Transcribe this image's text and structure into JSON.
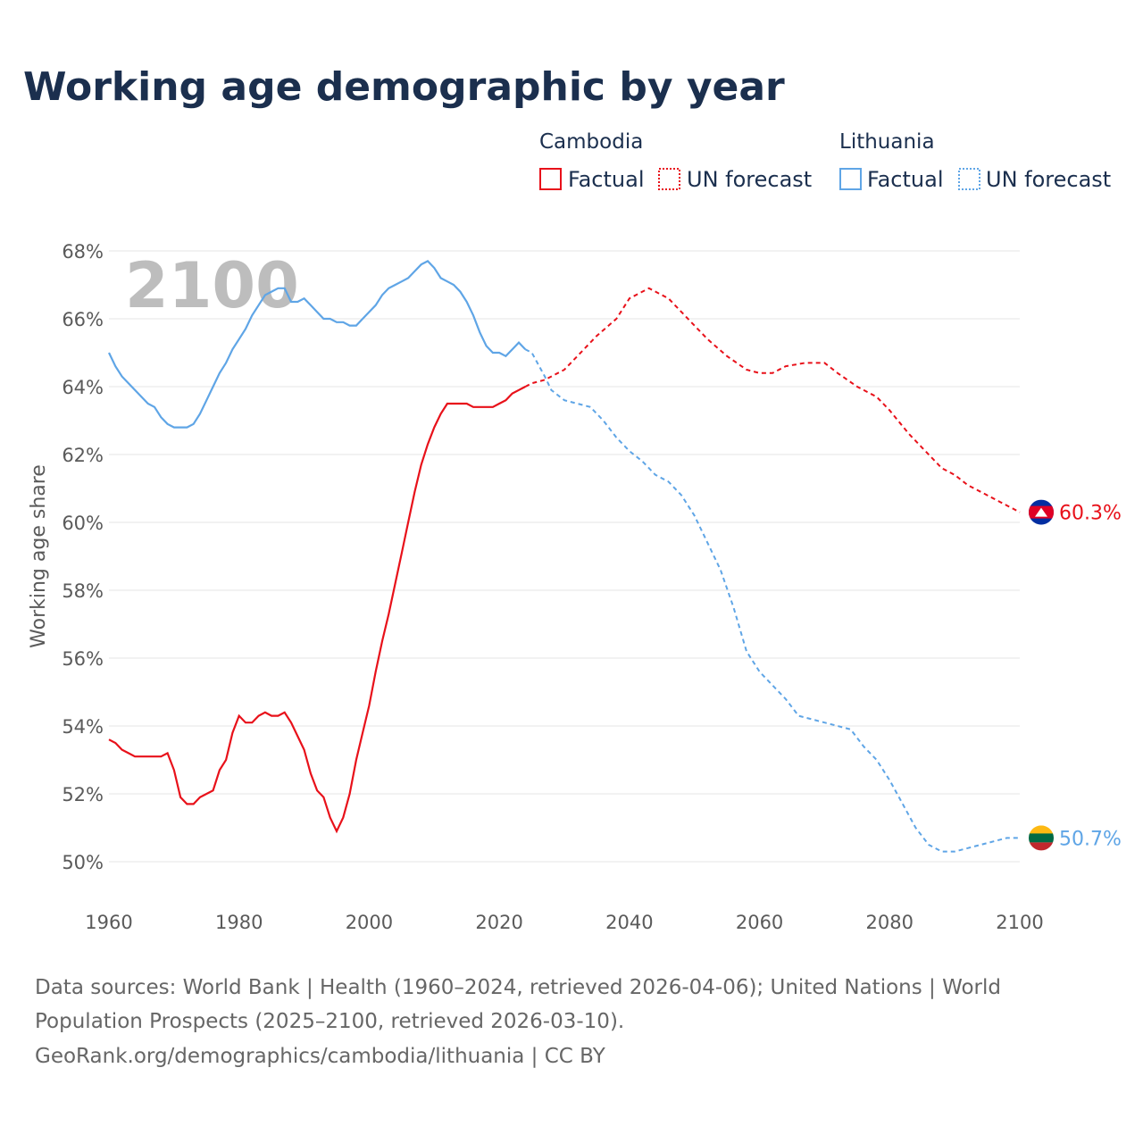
{
  "title": "Working age demographic by year",
  "legend": {
    "groups": [
      {
        "name": "Cambodia",
        "color": "#e8111a",
        "factual_label": "Factual",
        "forecast_label": "UN forecast"
      },
      {
        "name": "Lithuania",
        "color": "#5fa5e6",
        "factual_label": "Factual",
        "forecast_label": "UN forecast"
      }
    ]
  },
  "watermark_year": "2100",
  "source": {
    "line1": "Data sources: World Bank | Health (1960–2024, retrieved 2026-04-06); United Nations | World",
    "line2": "Population Prospects (2025–2100, retrieved 2026-03-10).",
    "line3": "GeoRank.org/demographics/cambodia/lithuania | CC BY"
  },
  "chart_data": {
    "type": "line",
    "title": "Working age demographic by year",
    "xlabel": "",
    "ylabel": "Working age share",
    "xlim": [
      1960,
      2100
    ],
    "ylim": [
      49.5,
      68
    ],
    "x_ticks": [
      1960,
      1980,
      2000,
      2020,
      2040,
      2060,
      2080,
      2100
    ],
    "x_tick_labels": [
      "1960",
      "1980",
      "2000",
      "2020",
      "2040",
      "2060",
      "2080",
      "2100"
    ],
    "y_ticks": [
      50,
      52,
      54,
      56,
      58,
      60,
      62,
      64,
      66,
      68
    ],
    "y_tick_labels": [
      "50%",
      "52%",
      "54%",
      "56%",
      "58%",
      "60%",
      "62%",
      "64%",
      "66%",
      "68%"
    ],
    "grid": true,
    "factual_end_year": 2024,
    "series": [
      {
        "name": "Cambodia",
        "color": "#e8111a",
        "end_label": "60.3%",
        "points": [
          [
            1960,
            53.6
          ],
          [
            1961,
            53.5
          ],
          [
            1962,
            53.3
          ],
          [
            1963,
            53.2
          ],
          [
            1964,
            53.1
          ],
          [
            1965,
            53.1
          ],
          [
            1966,
            53.1
          ],
          [
            1967,
            53.1
          ],
          [
            1968,
            53.1
          ],
          [
            1969,
            53.2
          ],
          [
            1970,
            52.7
          ],
          [
            1971,
            51.9
          ],
          [
            1972,
            51.7
          ],
          [
            1973,
            51.7
          ],
          [
            1974,
            51.9
          ],
          [
            1975,
            52.0
          ],
          [
            1976,
            52.1
          ],
          [
            1977,
            52.7
          ],
          [
            1978,
            53.0
          ],
          [
            1979,
            53.8
          ],
          [
            1980,
            54.3
          ],
          [
            1981,
            54.1
          ],
          [
            1982,
            54.1
          ],
          [
            1983,
            54.3
          ],
          [
            1984,
            54.4
          ],
          [
            1985,
            54.3
          ],
          [
            1986,
            54.3
          ],
          [
            1987,
            54.4
          ],
          [
            1988,
            54.1
          ],
          [
            1989,
            53.7
          ],
          [
            1990,
            53.3
          ],
          [
            1991,
            52.6
          ],
          [
            1992,
            52.1
          ],
          [
            1993,
            51.9
          ],
          [
            1994,
            51.3
          ],
          [
            1995,
            50.9
          ],
          [
            1996,
            51.3
          ],
          [
            1997,
            52.0
          ],
          [
            1998,
            53.0
          ],
          [
            1999,
            53.8
          ],
          [
            2000,
            54.6
          ],
          [
            2001,
            55.6
          ],
          [
            2002,
            56.5
          ],
          [
            2003,
            57.3
          ],
          [
            2004,
            58.2
          ],
          [
            2005,
            59.1
          ],
          [
            2006,
            60.0
          ],
          [
            2007,
            60.9
          ],
          [
            2008,
            61.7
          ],
          [
            2009,
            62.3
          ],
          [
            2010,
            62.8
          ],
          [
            2011,
            63.2
          ],
          [
            2012,
            63.5
          ],
          [
            2013,
            63.5
          ],
          [
            2014,
            63.5
          ],
          [
            2015,
            63.5
          ],
          [
            2016,
            63.4
          ],
          [
            2017,
            63.4
          ],
          [
            2018,
            63.4
          ],
          [
            2019,
            63.4
          ],
          [
            2020,
            63.5
          ],
          [
            2021,
            63.6
          ],
          [
            2022,
            63.8
          ],
          [
            2023,
            63.9
          ],
          [
            2024,
            64.0
          ],
          [
            2025,
            64.1
          ],
          [
            2027,
            64.2
          ],
          [
            2030,
            64.5
          ],
          [
            2032,
            64.9
          ],
          [
            2035,
            65.5
          ],
          [
            2038,
            66.0
          ],
          [
            2040,
            66.6
          ],
          [
            2043,
            66.9
          ],
          [
            2046,
            66.6
          ],
          [
            2050,
            65.8
          ],
          [
            2052,
            65.4
          ],
          [
            2055,
            64.9
          ],
          [
            2058,
            64.5
          ],
          [
            2060,
            64.4
          ],
          [
            2062,
            64.4
          ],
          [
            2064,
            64.6
          ],
          [
            2067,
            64.7
          ],
          [
            2070,
            64.7
          ],
          [
            2072,
            64.4
          ],
          [
            2075,
            64.0
          ],
          [
            2078,
            63.7
          ],
          [
            2080,
            63.3
          ],
          [
            2083,
            62.6
          ],
          [
            2085,
            62.2
          ],
          [
            2088,
            61.6
          ],
          [
            2090,
            61.4
          ],
          [
            2092,
            61.1
          ],
          [
            2095,
            60.8
          ],
          [
            2097,
            60.6
          ],
          [
            2099,
            60.4
          ],
          [
            2100,
            60.3
          ]
        ]
      },
      {
        "name": "Lithuania",
        "color": "#5fa5e6",
        "end_label": "50.7%",
        "points": [
          [
            1960,
            65.0
          ],
          [
            1961,
            64.6
          ],
          [
            1962,
            64.3
          ],
          [
            1963,
            64.1
          ],
          [
            1964,
            63.9
          ],
          [
            1965,
            63.7
          ],
          [
            1966,
            63.5
          ],
          [
            1967,
            63.4
          ],
          [
            1968,
            63.1
          ],
          [
            1969,
            62.9
          ],
          [
            1970,
            62.8
          ],
          [
            1971,
            62.8
          ],
          [
            1972,
            62.8
          ],
          [
            1973,
            62.9
          ],
          [
            1974,
            63.2
          ],
          [
            1975,
            63.6
          ],
          [
            1976,
            64.0
          ],
          [
            1977,
            64.4
          ],
          [
            1978,
            64.7
          ],
          [
            1979,
            65.1
          ],
          [
            1980,
            65.4
          ],
          [
            1981,
            65.7
          ],
          [
            1982,
            66.1
          ],
          [
            1983,
            66.4
          ],
          [
            1984,
            66.7
          ],
          [
            1985,
            66.8
          ],
          [
            1986,
            66.9
          ],
          [
            1987,
            66.9
          ],
          [
            1988,
            66.5
          ],
          [
            1989,
            66.5
          ],
          [
            1990,
            66.6
          ],
          [
            1991,
            66.4
          ],
          [
            1992,
            66.2
          ],
          [
            1993,
            66.0
          ],
          [
            1994,
            66.0
          ],
          [
            1995,
            65.9
          ],
          [
            1996,
            65.9
          ],
          [
            1997,
            65.8
          ],
          [
            1998,
            65.8
          ],
          [
            1999,
            66.0
          ],
          [
            2000,
            66.2
          ],
          [
            2001,
            66.4
          ],
          [
            2002,
            66.7
          ],
          [
            2003,
            66.9
          ],
          [
            2004,
            67.0
          ],
          [
            2005,
            67.1
          ],
          [
            2006,
            67.2
          ],
          [
            2007,
            67.4
          ],
          [
            2008,
            67.6
          ],
          [
            2009,
            67.7
          ],
          [
            2010,
            67.5
          ],
          [
            2011,
            67.2
          ],
          [
            2012,
            67.1
          ],
          [
            2013,
            67.0
          ],
          [
            2014,
            66.8
          ],
          [
            2015,
            66.5
          ],
          [
            2016,
            66.1
          ],
          [
            2017,
            65.6
          ],
          [
            2018,
            65.2
          ],
          [
            2019,
            65.0
          ],
          [
            2020,
            65.0
          ],
          [
            2021,
            64.9
          ],
          [
            2022,
            65.1
          ],
          [
            2023,
            65.3
          ],
          [
            2024,
            65.1
          ],
          [
            2025,
            65.0
          ],
          [
            2027,
            64.3
          ],
          [
            2028,
            63.9
          ],
          [
            2030,
            63.6
          ],
          [
            2032,
            63.5
          ],
          [
            2034,
            63.4
          ],
          [
            2036,
            63.0
          ],
          [
            2038,
            62.5
          ],
          [
            2040,
            62.1
          ],
          [
            2042,
            61.8
          ],
          [
            2044,
            61.4
          ],
          [
            2046,
            61.2
          ],
          [
            2048,
            60.8
          ],
          [
            2050,
            60.2
          ],
          [
            2052,
            59.4
          ],
          [
            2054,
            58.6
          ],
          [
            2056,
            57.5
          ],
          [
            2058,
            56.2
          ],
          [
            2060,
            55.6
          ],
          [
            2062,
            55.2
          ],
          [
            2064,
            54.8
          ],
          [
            2066,
            54.3
          ],
          [
            2068,
            54.2
          ],
          [
            2070,
            54.1
          ],
          [
            2072,
            54.0
          ],
          [
            2074,
            53.9
          ],
          [
            2076,
            53.4
          ],
          [
            2078,
            53.0
          ],
          [
            2080,
            52.4
          ],
          [
            2082,
            51.7
          ],
          [
            2084,
            51.0
          ],
          [
            2086,
            50.5
          ],
          [
            2088,
            50.3
          ],
          [
            2090,
            50.3
          ],
          [
            2092,
            50.4
          ],
          [
            2094,
            50.5
          ],
          [
            2096,
            50.6
          ],
          [
            2098,
            50.7
          ],
          [
            2100,
            50.7
          ]
        ]
      }
    ]
  }
}
